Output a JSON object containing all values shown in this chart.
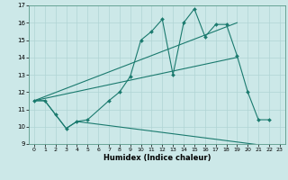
{
  "xlabel": "Humidex (Indice chaleur)",
  "bg_color": "#cce8e8",
  "grid_color": "#b0d4d4",
  "line_color": "#1a7a6e",
  "xlim": [
    -0.5,
    23.5
  ],
  "ylim": [
    9,
    17
  ],
  "yticks": [
    9,
    10,
    11,
    12,
    13,
    14,
    15,
    16,
    17
  ],
  "xticks": [
    0,
    1,
    2,
    3,
    4,
    5,
    6,
    7,
    8,
    9,
    10,
    11,
    12,
    13,
    14,
    15,
    16,
    17,
    18,
    19,
    20,
    21,
    22,
    23
  ],
  "s1x": [
    0,
    1,
    2,
    3,
    4,
    5,
    7,
    8,
    9,
    10,
    11,
    12,
    13,
    14,
    15,
    16,
    17,
    18,
    19,
    20,
    21,
    22
  ],
  "s1y": [
    11.5,
    11.5,
    10.7,
    9.9,
    10.3,
    10.4,
    11.5,
    12.0,
    12.9,
    15.0,
    15.5,
    16.2,
    13.0,
    16.0,
    16.8,
    15.2,
    15.9,
    15.9,
    14.1,
    12.0,
    10.4,
    10.4
  ],
  "s2x": [
    0,
    1,
    2,
    3,
    4,
    23
  ],
  "s2y": [
    11.5,
    11.5,
    10.7,
    9.9,
    10.3,
    8.8
  ],
  "s3x": [
    0,
    19
  ],
  "s3y": [
    11.5,
    16.0
  ],
  "s4x": [
    0,
    19
  ],
  "s4y": [
    11.5,
    14.0
  ],
  "line_width": 0.8,
  "marker_size": 2.0,
  "tick_fontsize": 5,
  "xlabel_fontsize": 6
}
